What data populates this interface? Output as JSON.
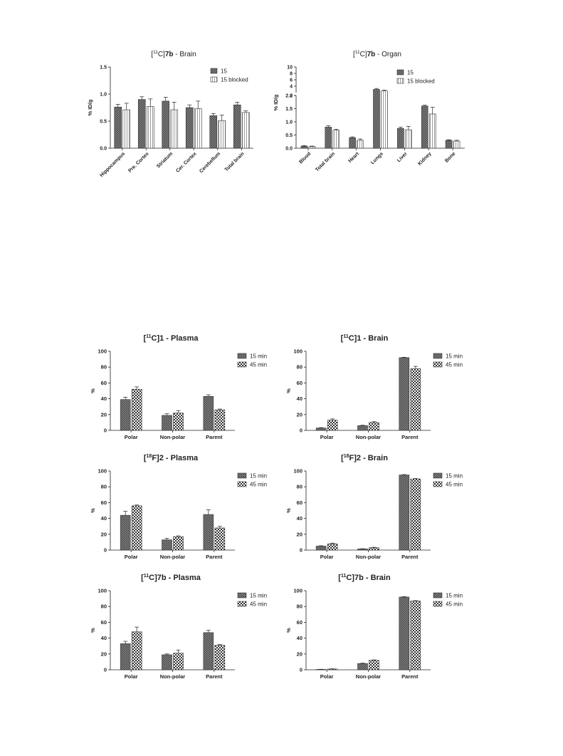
{
  "chart_data": [
    {
      "type": "bar",
      "title": "[11C]7b - Brain",
      "title_parts": {
        "pre": "[",
        "sup": "11",
        "mid": "C]",
        "bold": "7b",
        "post": " - Brain"
      },
      "ylabel": "% ID/g",
      "ylim": [
        0,
        1.5
      ],
      "yticks": [
        "0.0",
        "0.5",
        "1.0",
        "1.5"
      ],
      "categories": [
        "Hippocampus",
        "Pre. Cortex",
        "Striatum",
        "Cer. Cortex",
        "Cerebellum",
        "Total brain"
      ],
      "series": [
        {
          "name": "15",
          "values": [
            0.76,
            0.9,
            0.87,
            0.75,
            0.6,
            0.8
          ],
          "errors": [
            0.05,
            0.05,
            0.07,
            0.05,
            0.04,
            0.05
          ]
        },
        {
          "name": "15 blocked",
          "values": [
            0.71,
            0.77,
            0.71,
            0.73,
            0.51,
            0.66
          ],
          "errors": [
            0.12,
            0.14,
            0.14,
            0.14,
            0.1,
            0.03
          ]
        }
      ],
      "legend": "top-right"
    },
    {
      "type": "bar",
      "title": "[11C]7b - Organ",
      "title_parts": {
        "pre": "[",
        "sup": "11",
        "mid": "C]",
        "bold": "7b",
        "post": " - Organ"
      },
      "ylabel": "% ID/g",
      "ylim": [
        0,
        10
      ],
      "axis_break": {
        "lower": [
          0,
          2.0
        ],
        "upper": [
          2,
          10
        ]
      },
      "yticks_lower": [
        "0.0",
        "0.5",
        "1.0",
        "1.5",
        "2.0"
      ],
      "yticks_upper": [
        "2",
        "4",
        "6",
        "8",
        "10"
      ],
      "categories": [
        "Blood",
        "Total brain",
        "Heart",
        "Lungs",
        "Liver",
        "Kidney",
        "Bone"
      ],
      "series": [
        {
          "name": "15",
          "values": [
            0.08,
            0.8,
            0.4,
            3.0,
            0.75,
            1.6,
            0.3
          ],
          "errors": [
            0.02,
            0.05,
            0.03,
            0.3,
            0.05,
            0.03,
            0.02
          ]
        },
        {
          "name": "15 blocked",
          "values": [
            0.06,
            0.68,
            0.3,
            2.5,
            0.7,
            1.3,
            0.27
          ],
          "errors": [
            0.02,
            0.04,
            0.05,
            0.3,
            0.13,
            0.25,
            0.03
          ]
        }
      ],
      "legend": "top-right"
    },
    {
      "type": "bar",
      "title": "[11C]1 - Plasma",
      "title_parts": {
        "pre": "[",
        "sup": "11",
        "mid": "C]1 - Plasma",
        "bold": "",
        "post": ""
      },
      "ylabel": "%",
      "ylim": [
        0,
        100
      ],
      "yticks": [
        "0",
        "20",
        "40",
        "60",
        "80",
        "100"
      ],
      "categories": [
        "Polar",
        "Non-polar",
        "Parent"
      ],
      "series": [
        {
          "name": "15 min",
          "values": [
            39,
            19,
            43
          ],
          "errors": [
            3,
            2,
            2
          ]
        },
        {
          "name": "45 min",
          "values": [
            52,
            22,
            26
          ],
          "errors": [
            3,
            3,
            1
          ]
        }
      ],
      "legend": "top-right"
    },
    {
      "type": "bar",
      "title": "[11C]1 - Brain",
      "title_parts": {
        "pre": "[",
        "sup": "11",
        "mid": "C]1 - Brain",
        "bold": "",
        "post": ""
      },
      "ylabel": "%",
      "ylim": [
        0,
        100
      ],
      "yticks": [
        "0",
        "20",
        "40",
        "60",
        "80",
        "100"
      ],
      "categories": [
        "Polar",
        "Non-polar",
        "Parent"
      ],
      "series": [
        {
          "name": "15 min",
          "values": [
            3,
            6,
            92
          ],
          "errors": [
            0.5,
            0.5,
            0.5
          ]
        },
        {
          "name": "45 min",
          "values": [
            13,
            10,
            78
          ],
          "errors": [
            1.5,
            1,
            3
          ]
        }
      ],
      "legend": "top-right"
    },
    {
      "type": "bar",
      "title": "[18F]2 - Plasma",
      "title_parts": {
        "pre": "[",
        "sup": "18",
        "mid": "F]2 - Plasma",
        "bold": "",
        "post": ""
      },
      "ylabel": "%",
      "ylim": [
        0,
        100
      ],
      "yticks": [
        "0",
        "20",
        "40",
        "60",
        "80",
        "100"
      ],
      "categories": [
        "Polar",
        "Non-polar",
        "Parent"
      ],
      "series": [
        {
          "name": "15 min",
          "values": [
            44,
            13,
            45
          ],
          "errors": [
            5,
            2,
            6
          ]
        },
        {
          "name": "45 min",
          "values": [
            56,
            17,
            28
          ],
          "errors": [
            1,
            1,
            2
          ]
        }
      ],
      "legend": "top-right"
    },
    {
      "type": "bar",
      "title": "[18F]2 - Brain",
      "title_parts": {
        "pre": "[",
        "sup": "18",
        "mid": "F]2 - Brain",
        "bold": "",
        "post": ""
      },
      "ylabel": "%",
      "ylim": [
        0,
        100
      ],
      "yticks": [
        "0",
        "20",
        "40",
        "60",
        "80",
        "100"
      ],
      "categories": [
        "Polar",
        "Non-polar",
        "Parent"
      ],
      "series": [
        {
          "name": "15 min",
          "values": [
            5,
            1.5,
            95
          ],
          "errors": [
            0.5,
            0.3,
            0.5
          ]
        },
        {
          "name": "45 min",
          "values": [
            8,
            3,
            90
          ],
          "errors": [
            0.8,
            0.5,
            0.5
          ]
        }
      ],
      "legend": "top-right"
    },
    {
      "type": "bar",
      "title": "[11C]7b - Plasma",
      "title_parts": {
        "pre": "[",
        "sup": "11",
        "mid": "C]7b - Plasma",
        "bold": "",
        "post": ""
      },
      "ylabel": "%",
      "ylim": [
        0,
        100
      ],
      "yticks": [
        "0",
        "20",
        "40",
        "60",
        "80",
        "100"
      ],
      "categories": [
        "Polar",
        "Non-polar",
        "Parent"
      ],
      "series": [
        {
          "name": "15 min",
          "values": [
            33,
            19,
            47
          ],
          "errors": [
            3,
            1,
            3
          ]
        },
        {
          "name": "45 min",
          "values": [
            48,
            21,
            31
          ],
          "errors": [
            6,
            4,
            1
          ]
        }
      ],
      "legend": "top-right"
    },
    {
      "type": "bar",
      "title": "[11C]7b - Brain",
      "title_parts": {
        "pre": "[",
        "sup": "11",
        "mid": "C]7b - Brain",
        "bold": "",
        "post": ""
      },
      "ylabel": "%",
      "ylim": [
        0,
        100
      ],
      "yticks": [
        "0",
        "20",
        "40",
        "60",
        "80",
        "100"
      ],
      "categories": [
        "Polar",
        "Non-polar",
        "Parent"
      ],
      "series": [
        {
          "name": "15 min",
          "values": [
            0.5,
            8,
            92
          ],
          "errors": [
            0.2,
            0.5,
            0.5
          ]
        },
        {
          "name": "45 min",
          "values": [
            1,
            12,
            87
          ],
          "errors": [
            0.3,
            0.5,
            0.5
          ]
        }
      ],
      "legend": "top-right"
    }
  ]
}
